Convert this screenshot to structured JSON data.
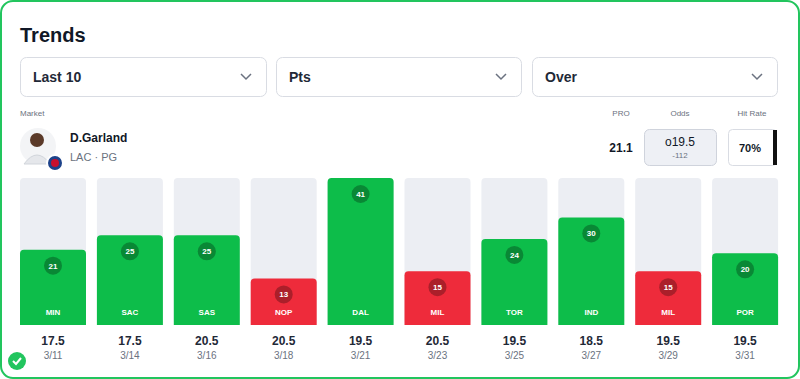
{
  "page": {
    "title": "Trends",
    "filters": [
      "Last 10",
      "Pts",
      "Over"
    ],
    "headers": [
      "Market",
      "PRO",
      "Odds",
      "Hit Rate"
    ],
    "player": {
      "name": "D.Garland",
      "team": "LAC · PG",
      "pro": 21.1,
      "line": "o19.5",
      "odds": -112,
      "hit_rate": "70%"
    }
  },
  "chart_data": {
    "type": "bar",
    "categories": [
      "MIN",
      "SAC",
      "SAS",
      "NOP",
      "DAL",
      "MIL",
      "TOR",
      "IND",
      "MIL",
      "POR"
    ],
    "values": [
      21,
      25,
      25,
      13,
      41,
      15,
      24,
      30,
      15,
      20
    ],
    "colors": [
      "#0dbd4a",
      "#0dbd4a",
      "#0dbd4a",
      "#ee2b3b",
      "#0dbd4a",
      "#ee2b3b",
      "#0dbd4a",
      "#0dbd4a",
      "#ee2b3b",
      "#0dbd4a"
    ],
    "lines": [
      17.5,
      17.5,
      20.5,
      20.5,
      19.5,
      20.5,
      19.5,
      18.5,
      19.5,
      19.5
    ],
    "dates": [
      "3/11",
      "3/14",
      "3/16",
      "3/18",
      "3/21",
      "3/23",
      "3/25",
      "3/27",
      "3/29",
      "3/31"
    ],
    "ylim": [
      0,
      41
    ],
    "data_labels": true
  }
}
